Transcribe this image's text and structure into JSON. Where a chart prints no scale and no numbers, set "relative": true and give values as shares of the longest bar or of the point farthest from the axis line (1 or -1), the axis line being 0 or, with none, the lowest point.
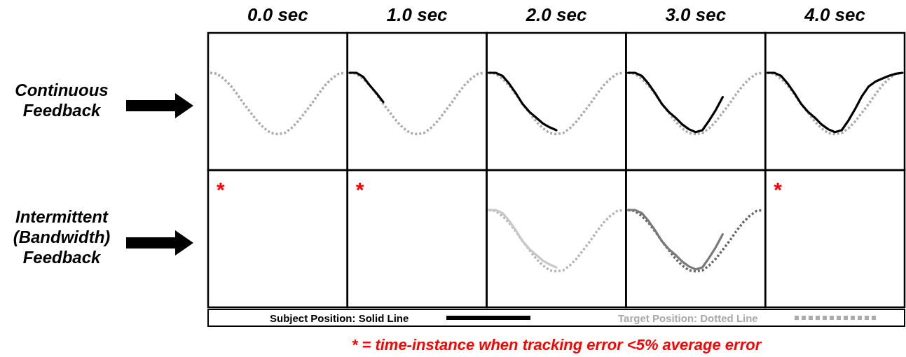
{
  "chart_data": [
    {
      "type": "line",
      "title": "0.0 sec",
      "ylabel": "Continuous Feedback",
      "relative": true,
      "annotations": [
        "* = time-instance when tracking error <5% average error"
      ],
      "categories": [
        null,
        null,
        null,
        null,
        null,
        null,
        null,
        null,
        null,
        null,
        null,
        null,
        null,
        null,
        null,
        null,
        null,
        null,
        null,
        null,
        null
      ],
      "series": [
        {
          "color": "#aaaaaa",
          "line_style": "dotted",
          "values": [
            1,
            0.99,
            0.94,
            0.87,
            0.78,
            0.68,
            0.59,
            0.5,
            0.43,
            0.38,
            0.37,
            0.38,
            0.43,
            0.5,
            0.59,
            0.68,
            0.78,
            0.87,
            0.94,
            0.99,
            1
          ]
        }
      ]
    },
    {
      "type": "line",
      "title": "1.0 sec",
      "relative": true,
      "categories": [
        null,
        null,
        null,
        null,
        null,
        null,
        null,
        null,
        null,
        null,
        null,
        null,
        null,
        null,
        null,
        null,
        null,
        null,
        null,
        null,
        null
      ],
      "series": [
        {
          "color": "#000000",
          "line_style": "solid",
          "values": [
            1,
            1,
            0.96,
            0.87,
            0.79,
            0.7,
            null,
            null,
            null,
            null,
            null,
            null,
            null,
            null,
            null,
            null,
            null,
            null,
            null,
            null,
            null
          ]
        },
        {
          "color": "#aaaaaa",
          "line_style": "dotted",
          "values": [
            1,
            0.99,
            0.94,
            0.87,
            0.78,
            0.68,
            0.59,
            0.5,
            0.43,
            0.38,
            0.37,
            0.38,
            0.43,
            0.5,
            0.59,
            0.68,
            0.78,
            0.87,
            0.94,
            0.99,
            1
          ]
        }
      ]
    },
    {
      "type": "line",
      "title": "2.0 sec",
      "relative": true,
      "categories": [
        null,
        null,
        null,
        null,
        null,
        null,
        null,
        null,
        null,
        null,
        null,
        null,
        null,
        null,
        null,
        null,
        null,
        null,
        null,
        null,
        null
      ],
      "series": [
        {
          "color": "#000000",
          "line_style": "solid",
          "values": [
            1,
            1,
            0.97,
            0.89,
            0.79,
            0.68,
            0.6,
            0.54,
            0.48,
            0.44,
            0.41,
            null,
            null,
            null,
            null,
            null,
            null,
            null,
            null,
            null,
            null
          ]
        },
        {
          "color": "#aaaaaa",
          "line_style": "dotted",
          "values": [
            1,
            0.99,
            0.94,
            0.87,
            0.78,
            0.68,
            0.59,
            0.5,
            0.43,
            0.38,
            0.37,
            0.38,
            0.43,
            0.5,
            0.59,
            0.68,
            0.78,
            0.87,
            0.94,
            0.99,
            1
          ]
        }
      ]
    },
    {
      "type": "line",
      "title": "3.0 sec",
      "relative": true,
      "categories": [
        null,
        null,
        null,
        null,
        null,
        null,
        null,
        null,
        null,
        null,
        null,
        null,
        null,
        null,
        null,
        null,
        null,
        null,
        null,
        null,
        null
      ],
      "series": [
        {
          "color": "#000000",
          "line_style": "solid",
          "values": [
            1,
            1,
            0.97,
            0.89,
            0.79,
            0.68,
            0.6,
            0.54,
            0.47,
            0.42,
            0.39,
            0.41,
            0.51,
            0.62,
            0.75,
            null,
            null,
            null,
            null,
            null,
            null
          ]
        },
        {
          "color": "#aaaaaa",
          "line_style": "dotted",
          "values": [
            1,
            0.99,
            0.94,
            0.87,
            0.78,
            0.68,
            0.59,
            0.5,
            0.43,
            0.38,
            0.37,
            0.38,
            0.43,
            0.5,
            0.59,
            0.68,
            0.78,
            0.87,
            0.94,
            0.99,
            1
          ]
        }
      ]
    },
    {
      "type": "line",
      "title": "4.0 sec",
      "relative": true,
      "legend": "bottom",
      "categories": [
        null,
        null,
        null,
        null,
        null,
        null,
        null,
        null,
        null,
        null,
        null,
        null,
        null,
        null,
        null,
        null,
        null,
        null,
        null,
        null,
        null
      ],
      "series": [
        {
          "name": "Subject Position: Solid Line",
          "color": "#000000",
          "line_style": "solid",
          "values": [
            1,
            1,
            0.97,
            0.89,
            0.79,
            0.68,
            0.6,
            0.54,
            0.47,
            0.42,
            0.39,
            0.41,
            0.51,
            0.63,
            0.76,
            0.86,
            0.91,
            0.94,
            0.97,
            0.99,
            1
          ]
        },
        {
          "name": "Target Position: Dotted Line",
          "color": "#aaaaaa",
          "line_style": "dotted",
          "values": [
            1,
            0.99,
            0.94,
            0.87,
            0.78,
            0.68,
            0.59,
            0.5,
            0.43,
            0.38,
            0.37,
            0.38,
            0.43,
            0.5,
            0.59,
            0.68,
            0.78,
            0.87,
            0.94,
            0.99,
            1
          ]
        }
      ]
    },
    {
      "type": "other",
      "ylabel": "Intermittent (Bandwidth) Feedback",
      "annotations": [
        "*"
      ]
    },
    {
      "type": "other",
      "annotations": [
        "*"
      ]
    },
    {
      "type": "line",
      "relative": true,
      "categories": [
        null,
        null,
        null,
        null,
        null,
        null,
        null,
        null,
        null,
        null,
        null,
        null,
        null,
        null,
        null,
        null,
        null,
        null,
        null,
        null,
        null
      ],
      "series": [
        {
          "color": "#c8c8c8",
          "line_style": "solid",
          "values": [
            1,
            1,
            0.97,
            0.89,
            0.79,
            0.68,
            0.6,
            0.54,
            0.48,
            0.44,
            0.41,
            null,
            null,
            null,
            null,
            null,
            null,
            null,
            null,
            null,
            null
          ]
        },
        {
          "color": "#b4b4b4",
          "line_style": "dotted",
          "values": [
            1,
            0.99,
            0.94,
            0.87,
            0.78,
            0.68,
            0.59,
            0.5,
            0.43,
            0.38,
            0.37,
            0.38,
            0.43,
            0.5,
            0.59,
            0.68,
            0.78,
            0.87,
            0.94,
            0.99,
            1
          ]
        }
      ]
    },
    {
      "type": "line",
      "relative": true,
      "categories": [
        null,
        null,
        null,
        null,
        null,
        null,
        null,
        null,
        null,
        null,
        null,
        null,
        null,
        null,
        null,
        null,
        null,
        null,
        null,
        null,
        null
      ],
      "series": [
        {
          "color": "#7a7a7a",
          "line_style": "solid",
          "values": [
            1,
            1,
            0.97,
            0.89,
            0.79,
            0.68,
            0.6,
            0.54,
            0.47,
            0.42,
            0.39,
            0.41,
            0.51,
            0.62,
            0.75,
            null,
            null,
            null,
            null,
            null,
            null
          ]
        },
        {
          "color": "#666666",
          "line_style": "dotted",
          "values": [
            1,
            0.99,
            0.94,
            0.87,
            0.78,
            0.68,
            0.59,
            0.5,
            0.43,
            0.38,
            0.37,
            0.38,
            0.43,
            0.5,
            0.59,
            0.68,
            0.78,
            0.87,
            0.94,
            0.99,
            1
          ]
        }
      ]
    },
    {
      "type": "other",
      "annotations": [
        "*"
      ]
    }
  ]
}
